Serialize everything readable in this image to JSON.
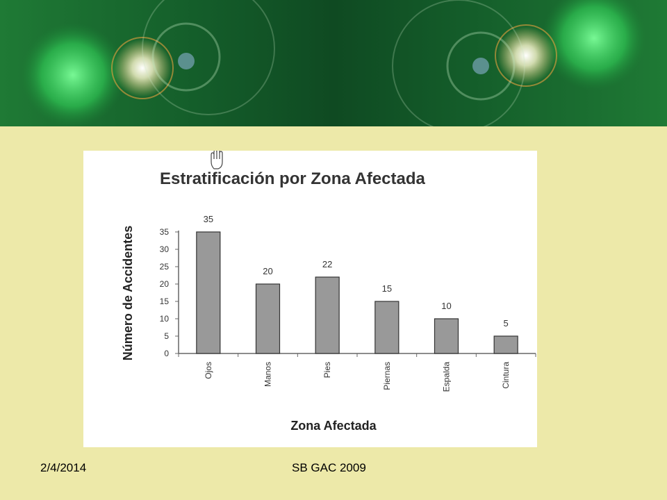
{
  "footer": {
    "date": "2/4/2014",
    "center_text": "SB GAC 2009"
  },
  "cursor": {
    "icon": "hand-pointer-icon"
  },
  "colors": {
    "background": "#ede9a9",
    "bar": "#999999",
    "banner": "#145d2a"
  },
  "chart_data": {
    "type": "bar",
    "title": "Estratificación por Zona Afectada",
    "xlabel": "Zona Afectada",
    "ylabel": "Número de Accidentes",
    "categories": [
      "Ojos",
      "Manos",
      "Pies",
      "Piernas",
      "Espalda",
      "Cintura"
    ],
    "values": [
      35,
      20,
      22,
      15,
      10,
      5
    ],
    "ylim": [
      0,
      35
    ],
    "yticks": [
      0,
      5,
      10,
      15,
      20,
      25,
      30,
      35
    ],
    "grid": false,
    "legend": "none"
  }
}
